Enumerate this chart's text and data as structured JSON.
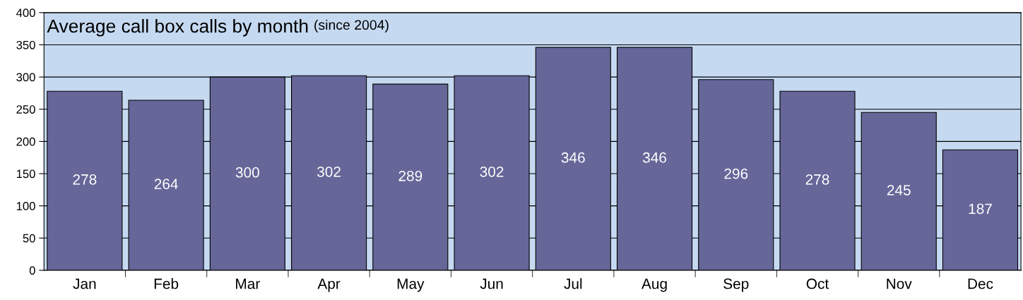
{
  "chart_data": {
    "type": "bar",
    "title": "Average call box calls by month",
    "subtitle": "(since 2004)",
    "categories": [
      "Jan",
      "Feb",
      "Mar",
      "Apr",
      "May",
      "Jun",
      "Jul",
      "Aug",
      "Sep",
      "Oct",
      "Nov",
      "Dec"
    ],
    "values": [
      278,
      264,
      300,
      302,
      289,
      302,
      346,
      346,
      296,
      278,
      245,
      187
    ],
    "color": "#666699",
    "data_labels": true,
    "ylim": [
      0,
      400
    ],
    "yticks": [
      0,
      50,
      100,
      150,
      200,
      250,
      300,
      350,
      400
    ],
    "grid": "y",
    "bands": [
      {
        "axis": "y",
        "from": 0,
        "to": 400,
        "color": "#c5d9f1"
      }
    ],
    "legend": false
  }
}
